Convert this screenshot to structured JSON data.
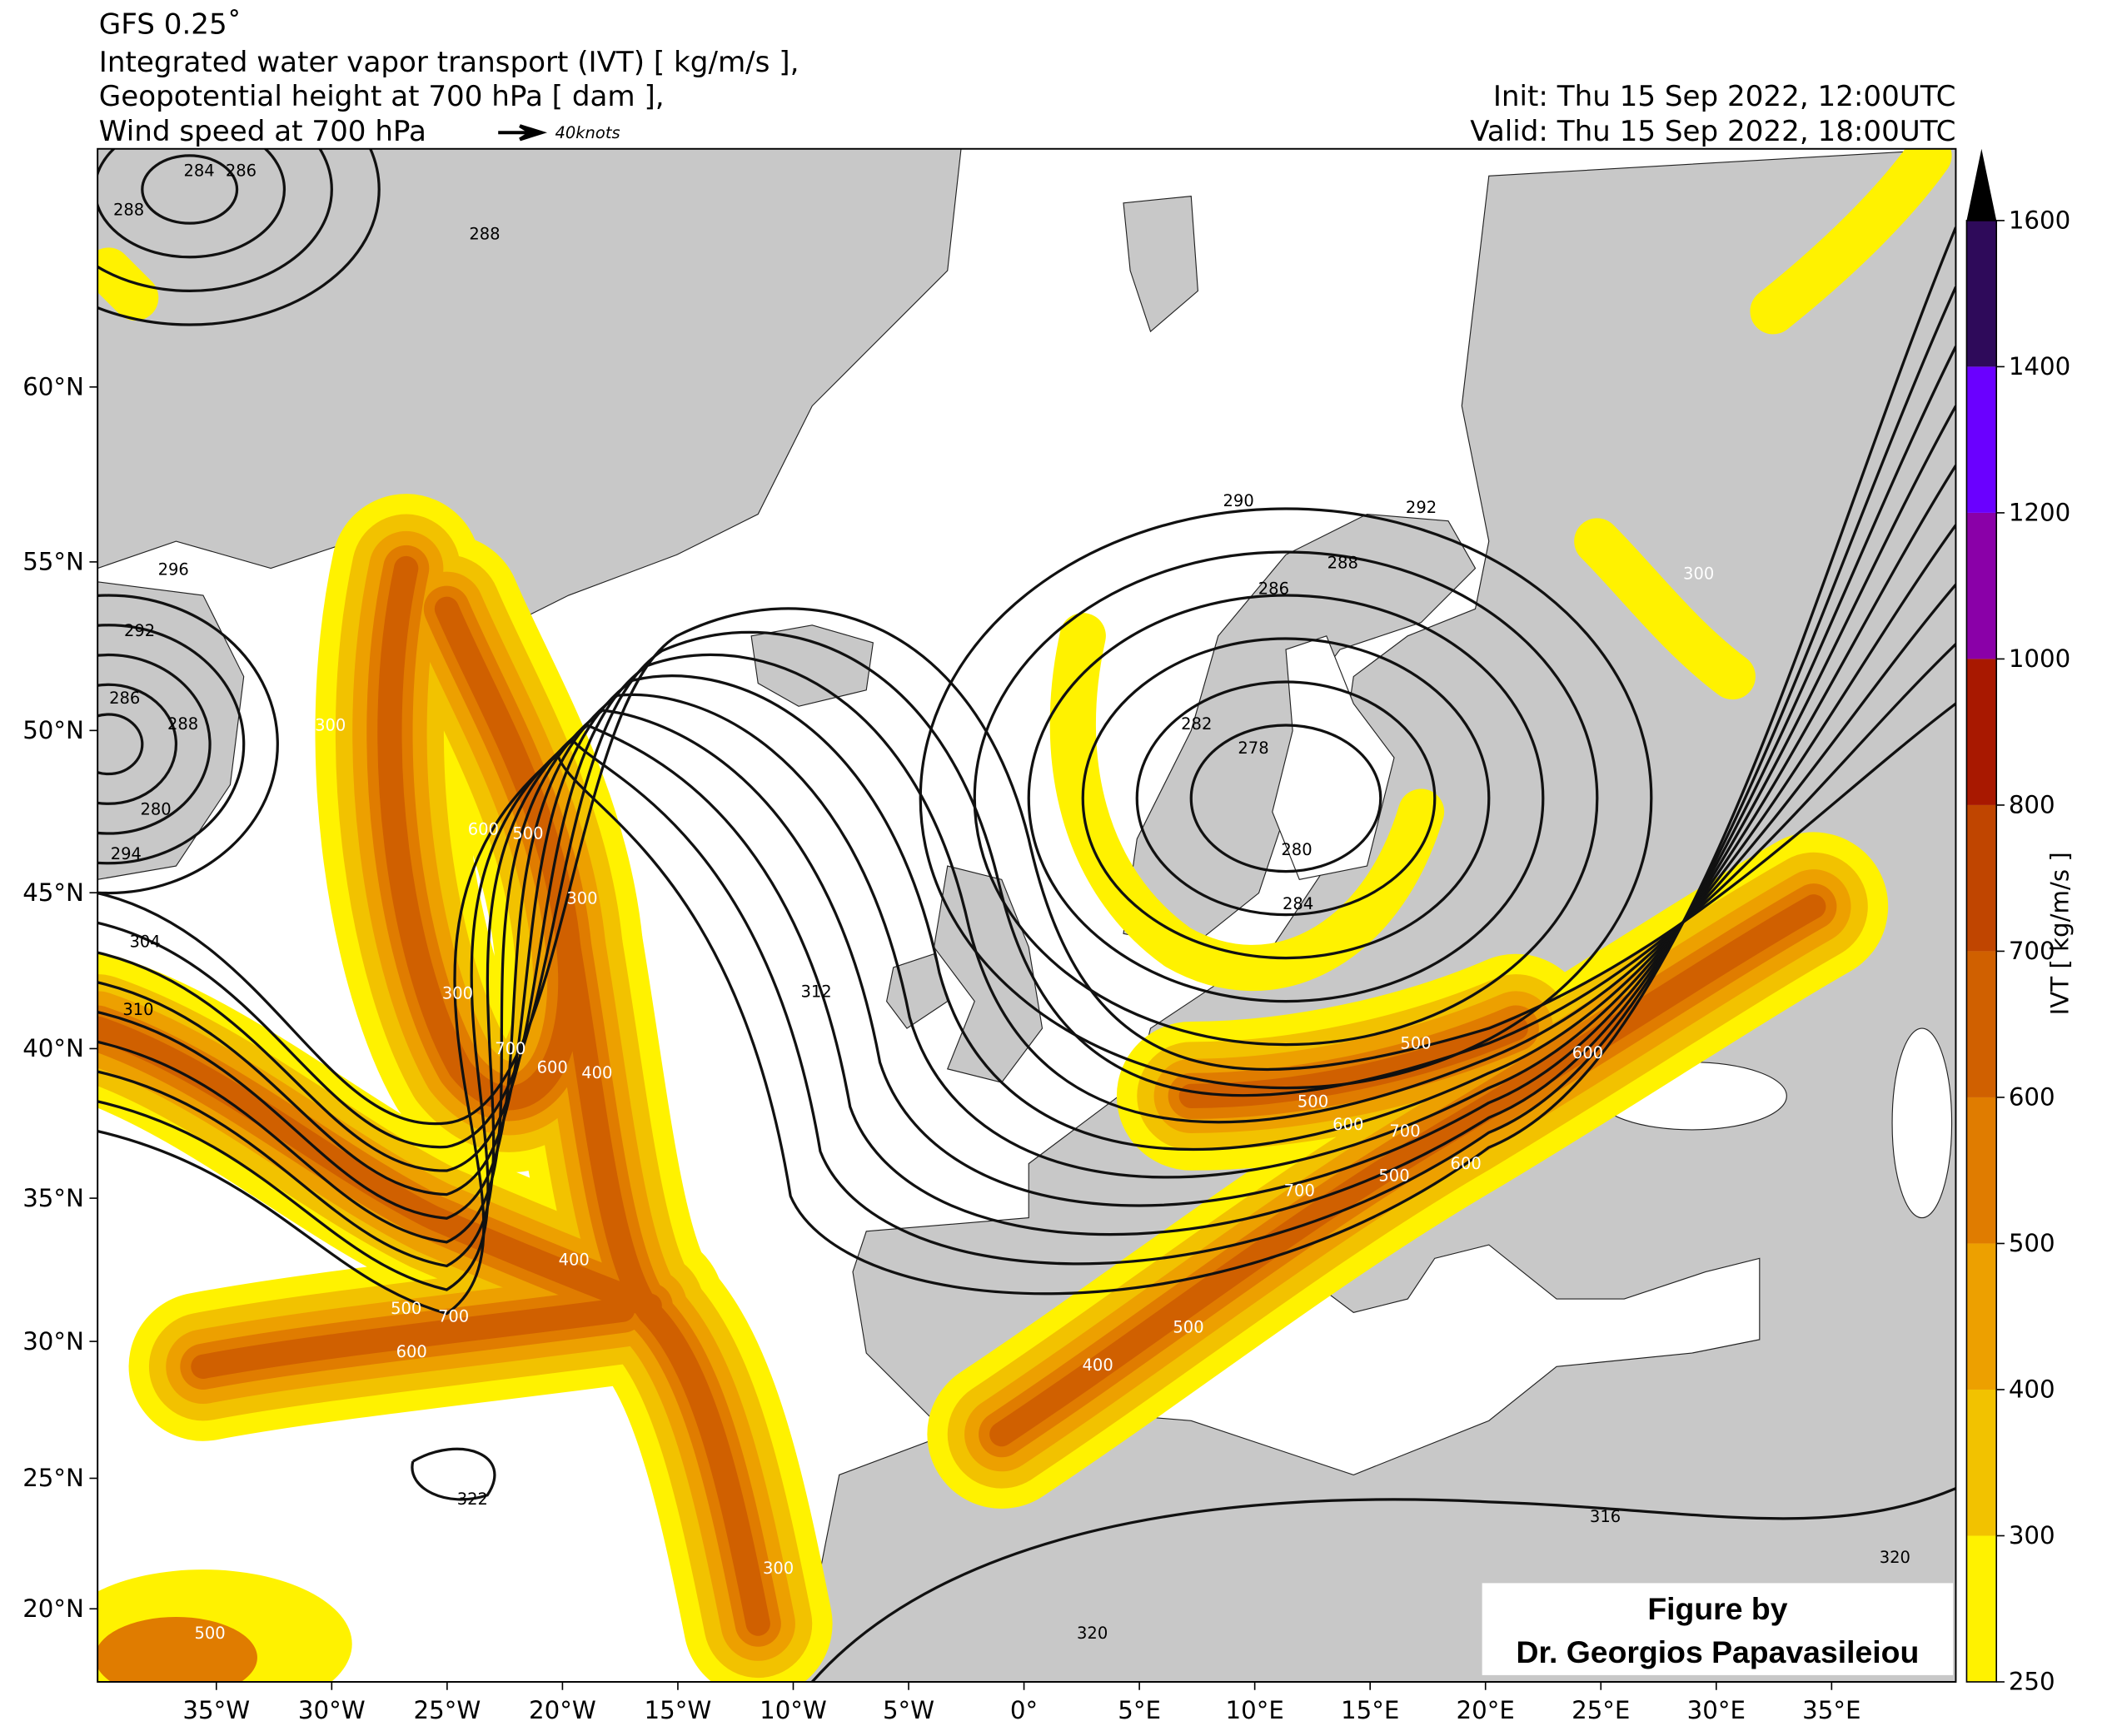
{
  "header": {
    "model": "GFS 0.25˚",
    "line1": "Integrated water vapor transport (IVT) [ kg/m/s ],",
    "line2": "Geopotential height at 700 hPa [ dam ],",
    "line3": "Wind speed at 700 hPa",
    "wind_key": "40knots",
    "init": "Init: Thu 15 Sep 2022, 12:00UTC",
    "valid": "Valid: Thu 15 Sep 2022, 18:00UTC"
  },
  "map": {
    "lat_ticks": [
      {
        "value": 60,
        "label": "60°N"
      },
      {
        "value": 55,
        "label": "55°N"
      },
      {
        "value": 50,
        "label": "50°N"
      },
      {
        "value": 45,
        "label": "45°N"
      },
      {
        "value": 40,
        "label": "40°N"
      },
      {
        "value": 35,
        "label": "35°N"
      },
      {
        "value": 30,
        "label": "30°N"
      },
      {
        "value": 25,
        "label": "25°N"
      },
      {
        "value": 20,
        "label": "20°N"
      }
    ],
    "lon_ticks": [
      {
        "value": -35,
        "label": "35°W"
      },
      {
        "value": -30,
        "label": "30°W"
      },
      {
        "value": -25,
        "label": "25°W"
      },
      {
        "value": -20,
        "label": "20°W"
      },
      {
        "value": -15,
        "label": "15°W"
      },
      {
        "value": -10,
        "label": "10°W"
      },
      {
        "value": -5,
        "label": "5°W"
      },
      {
        "value": 0,
        "label": "0°"
      },
      {
        "value": 5,
        "label": "5°E"
      },
      {
        "value": 10,
        "label": "10°E"
      },
      {
        "value": 15,
        "label": "15°E"
      },
      {
        "value": 20,
        "label": "20°E"
      },
      {
        "value": 25,
        "label": "25°E"
      },
      {
        "value": 30,
        "label": "30°E"
      },
      {
        "value": 35,
        "label": "35°E"
      }
    ],
    "contour_labels": [
      284,
      286,
      288,
      288,
      296,
      292,
      286,
      288,
      280,
      294,
      304,
      310,
      312,
      322,
      290,
      292,
      288,
      286,
      282,
      278,
      280,
      284,
      316,
      320,
      320
    ],
    "ivt_labels": [
      600,
      500,
      300,
      300,
      700,
      600,
      400,
      400,
      500,
      700,
      600,
      500,
      500,
      600,
      700,
      600,
      700,
      500,
      600,
      500,
      400,
      500,
      300,
      300,
      300
    ]
  },
  "colorbar": {
    "label": "IVT [ kg/m/s ]",
    "ticks": [
      250,
      300,
      400,
      500,
      600,
      700,
      800,
      1000,
      1200,
      1400,
      1600
    ],
    "colors": [
      "#fff200",
      "#f2c200",
      "#eda000",
      "#e07c00",
      "#d06000",
      "#c04500",
      "#a81800",
      "#8a00a8",
      "#6a00ff",
      "#2e0a5a"
    ]
  },
  "credit": {
    "line1": "Figure by",
    "line2": "Dr. Georgios Papavasileiou"
  }
}
